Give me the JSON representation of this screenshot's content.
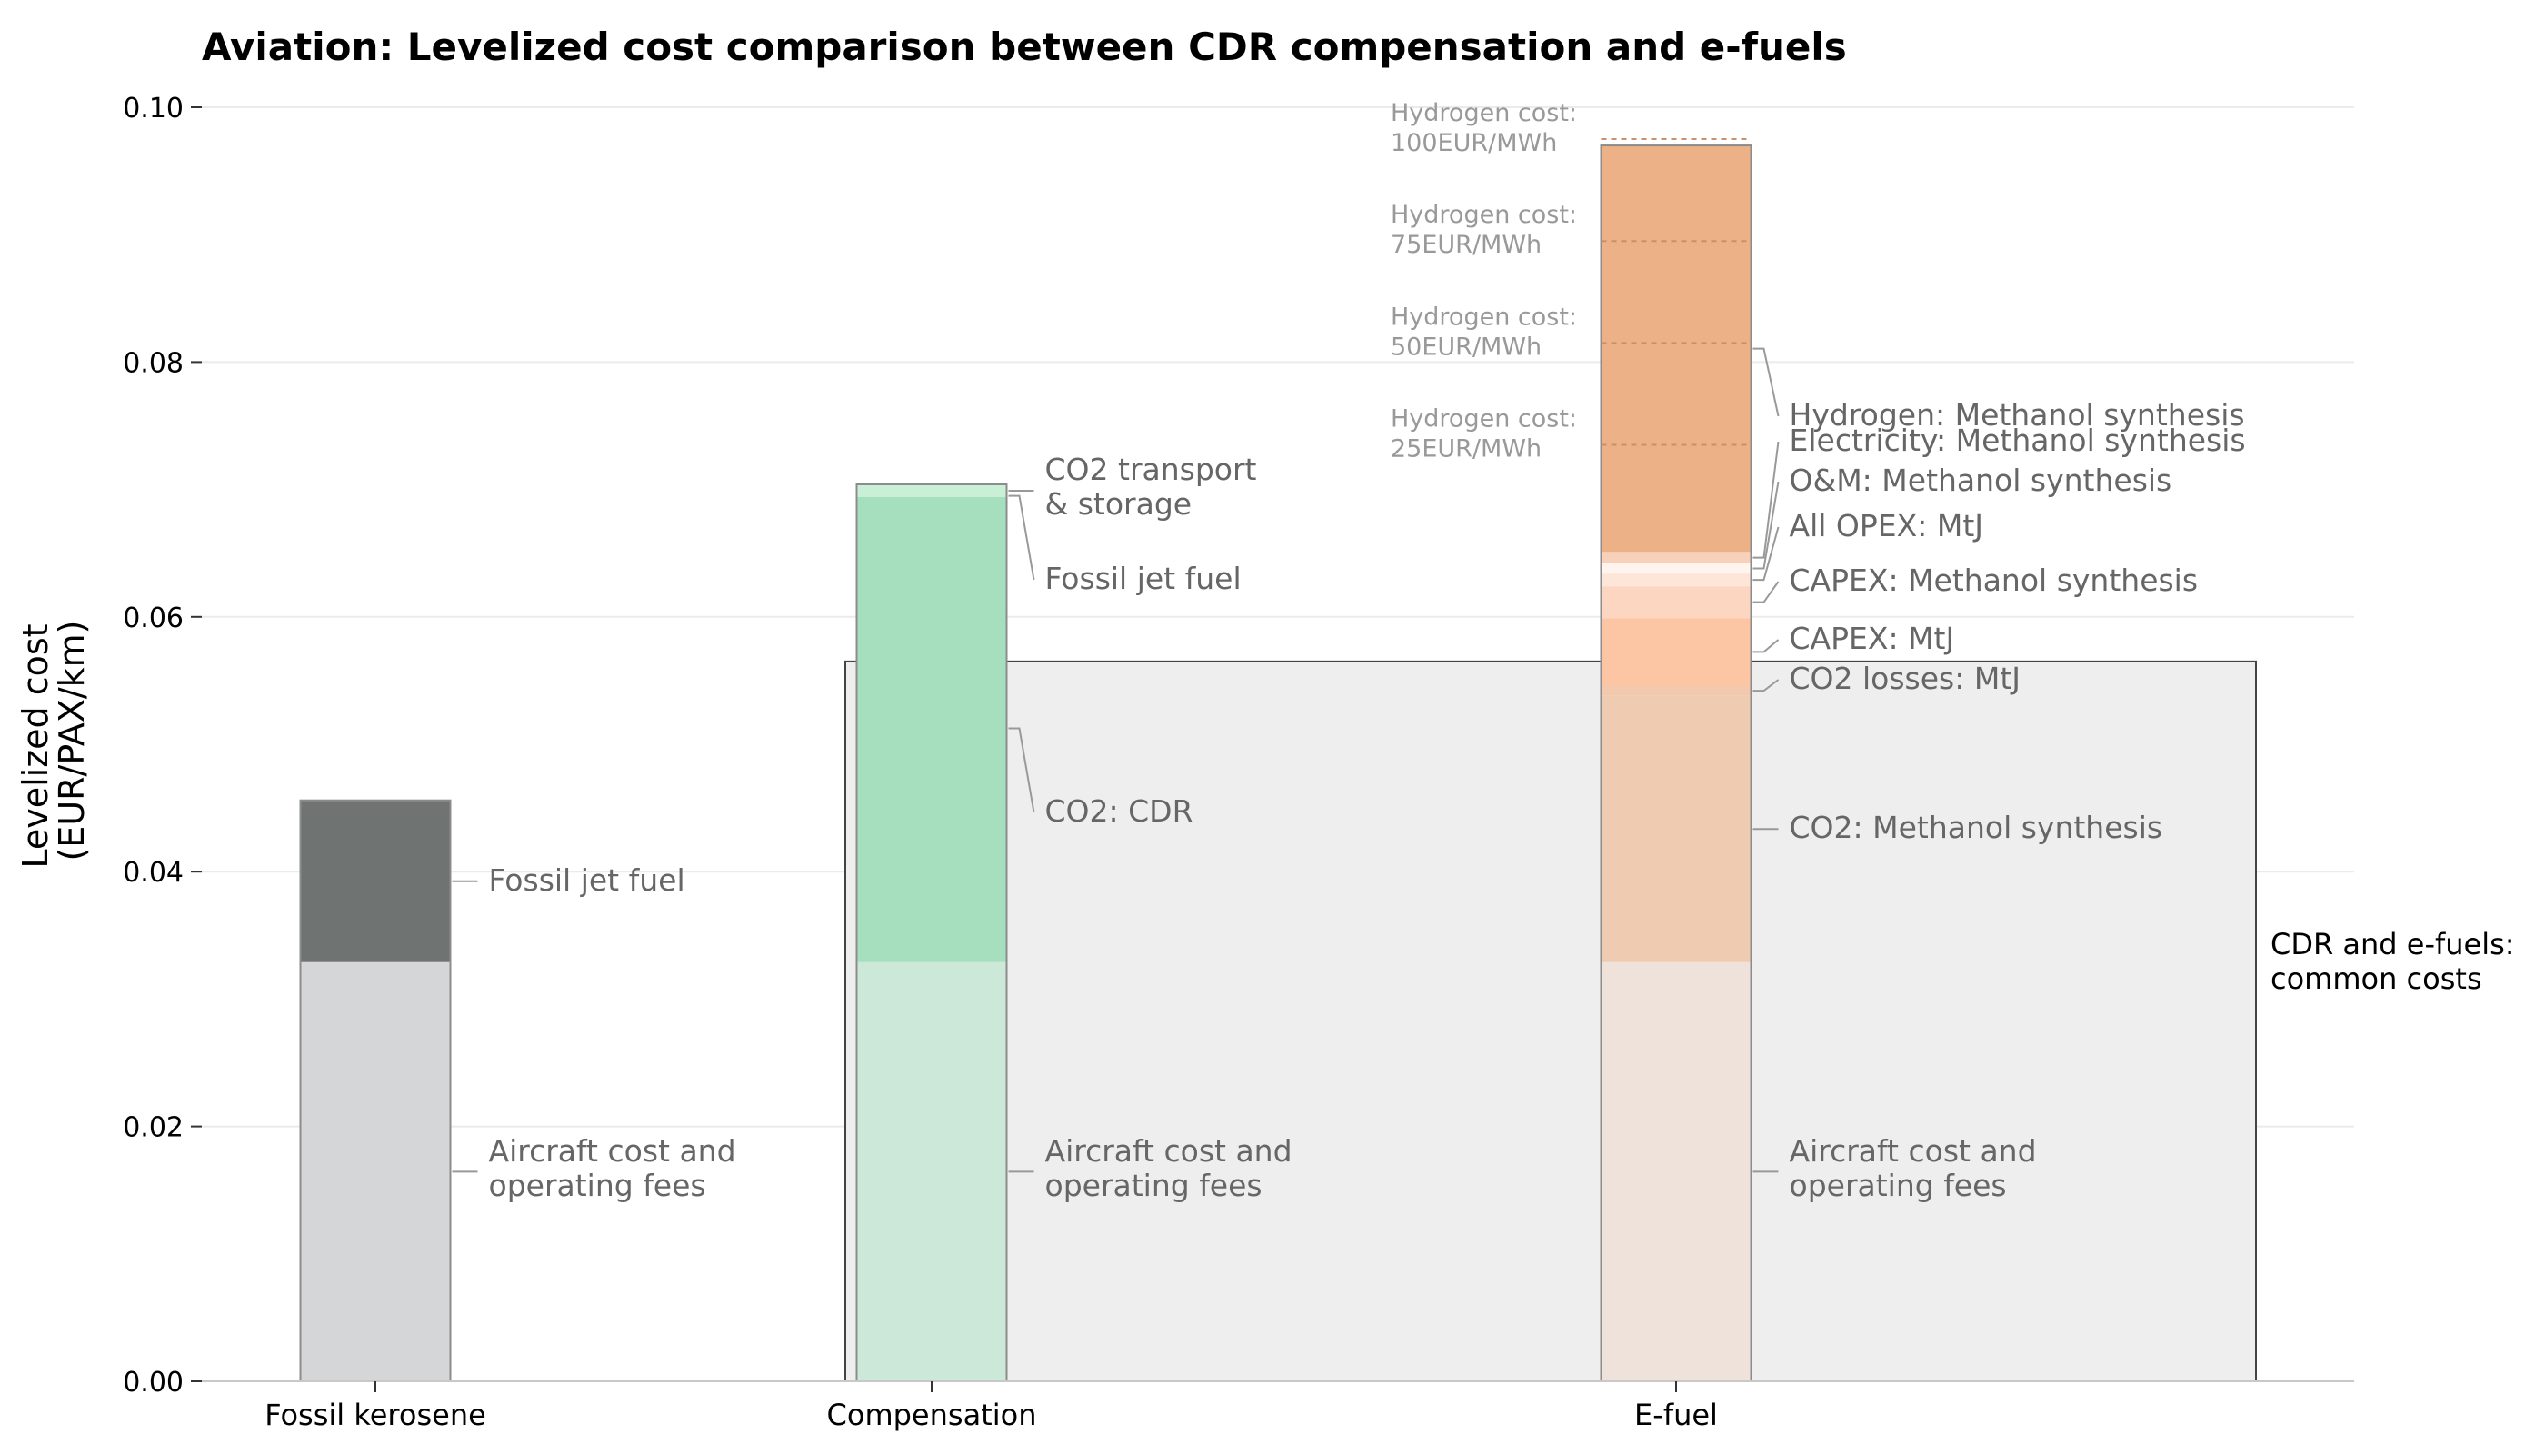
{
  "chart_data": {
    "type": "bar",
    "stacked": true,
    "title": "Aviation: Levelized cost comparison between CDR compensation and e-fuels",
    "ylabel_lines": [
      "Levelized cost",
      "(EUR/PAX/km)"
    ],
    "ylim": [
      0,
      0.1
    ],
    "yticks": [
      "0.00",
      "0.02",
      "0.04",
      "0.06",
      "0.08",
      "0.10"
    ],
    "grid": true,
    "categories": [
      "Fossil kerosene",
      "Compensation",
      "E-fuel"
    ],
    "bars": [
      {
        "category": "Fossil kerosene",
        "segments": [
          {
            "value": 0.0329,
            "color": "#d5d6d8",
            "label_lines": [
              "Aircraft cost and",
              "operating fees"
            ]
          },
          {
            "value": 0.0127,
            "color": "#6f7372",
            "label_lines": [
              "Fossil jet fuel"
            ]
          }
        ]
      },
      {
        "category": "Compensation",
        "segments": [
          {
            "value": 0.0329,
            "color": "#cce8d8",
            "label_lines": [
              "Aircraft cost and",
              "operating fees"
            ]
          },
          {
            "value": 0.0367,
            "color": "#a6dfbe",
            "label_lines": [
              "CO2: CDR"
            ]
          },
          {
            "value": 0.0,
            "color": "#66bb89",
            "label_lines": [
              "Fossil jet fuel"
            ]
          },
          {
            "value": 0.001,
            "color": "#c9f0d7",
            "label_lines": [
              "CO2 transport",
              "& storage"
            ]
          }
        ]
      },
      {
        "category": "E-fuel",
        "segments": [
          {
            "value": 0.0329,
            "color": "#efe2da",
            "label_lines": [
              "Aircraft cost and",
              "operating fees"
            ]
          },
          {
            "value": 0.0209,
            "color": "#eecbb1",
            "label_lines": [
              "CO2: Methanol synthesis"
            ]
          },
          {
            "value": 0.0008,
            "color": "#f3c9ae",
            "label_lines": [
              "CO2 losses: MtJ"
            ]
          },
          {
            "value": 0.0053,
            "color": "#fcc6a5",
            "label_lines": [
              "CAPEX: MtJ"
            ]
          },
          {
            "value": 0.0025,
            "color": "#fcd6c0",
            "label_lines": [
              "CAPEX: Methanol synthesis"
            ]
          },
          {
            "value": 0.001,
            "color": "#fde6d8",
            "label_lines": [
              "All OPEX: MtJ"
            ]
          },
          {
            "value": 0.0008,
            "color": "#fff5ee",
            "label_lines": [
              "O&M: Methanol synthesis"
            ]
          },
          {
            "value": 0.0009,
            "color": "#f7d1ba",
            "label_lines": [
              "Electricity: Methanol synthesis"
            ]
          },
          {
            "value": 0.0319,
            "color": "#ecb186",
            "label_lines": [
              "Hydrogen: Methanol synthesis"
            ]
          }
        ]
      }
    ],
    "compensation_fossil_fuel_top": 0.0694,
    "hydrogen_cost_lines": [
      {
        "value": 0.0735,
        "label_lines": [
          "Hydrogen cost:",
          "25EUR/MWh"
        ]
      },
      {
        "value": 0.0815,
        "label_lines": [
          "Hydrogen cost:",
          "50EUR/MWh"
        ]
      },
      {
        "value": 0.0895,
        "label_lines": [
          "Hydrogen cost:",
          "75EUR/MWh"
        ]
      },
      {
        "value": 0.0975,
        "label_lines": [
          "Hydrogen cost:",
          "100EUR/MWh"
        ]
      }
    ],
    "common_costs_box": {
      "top": 0.0565,
      "label_lines": [
        "CDR and e-fuels:",
        "common costs"
      ]
    }
  }
}
